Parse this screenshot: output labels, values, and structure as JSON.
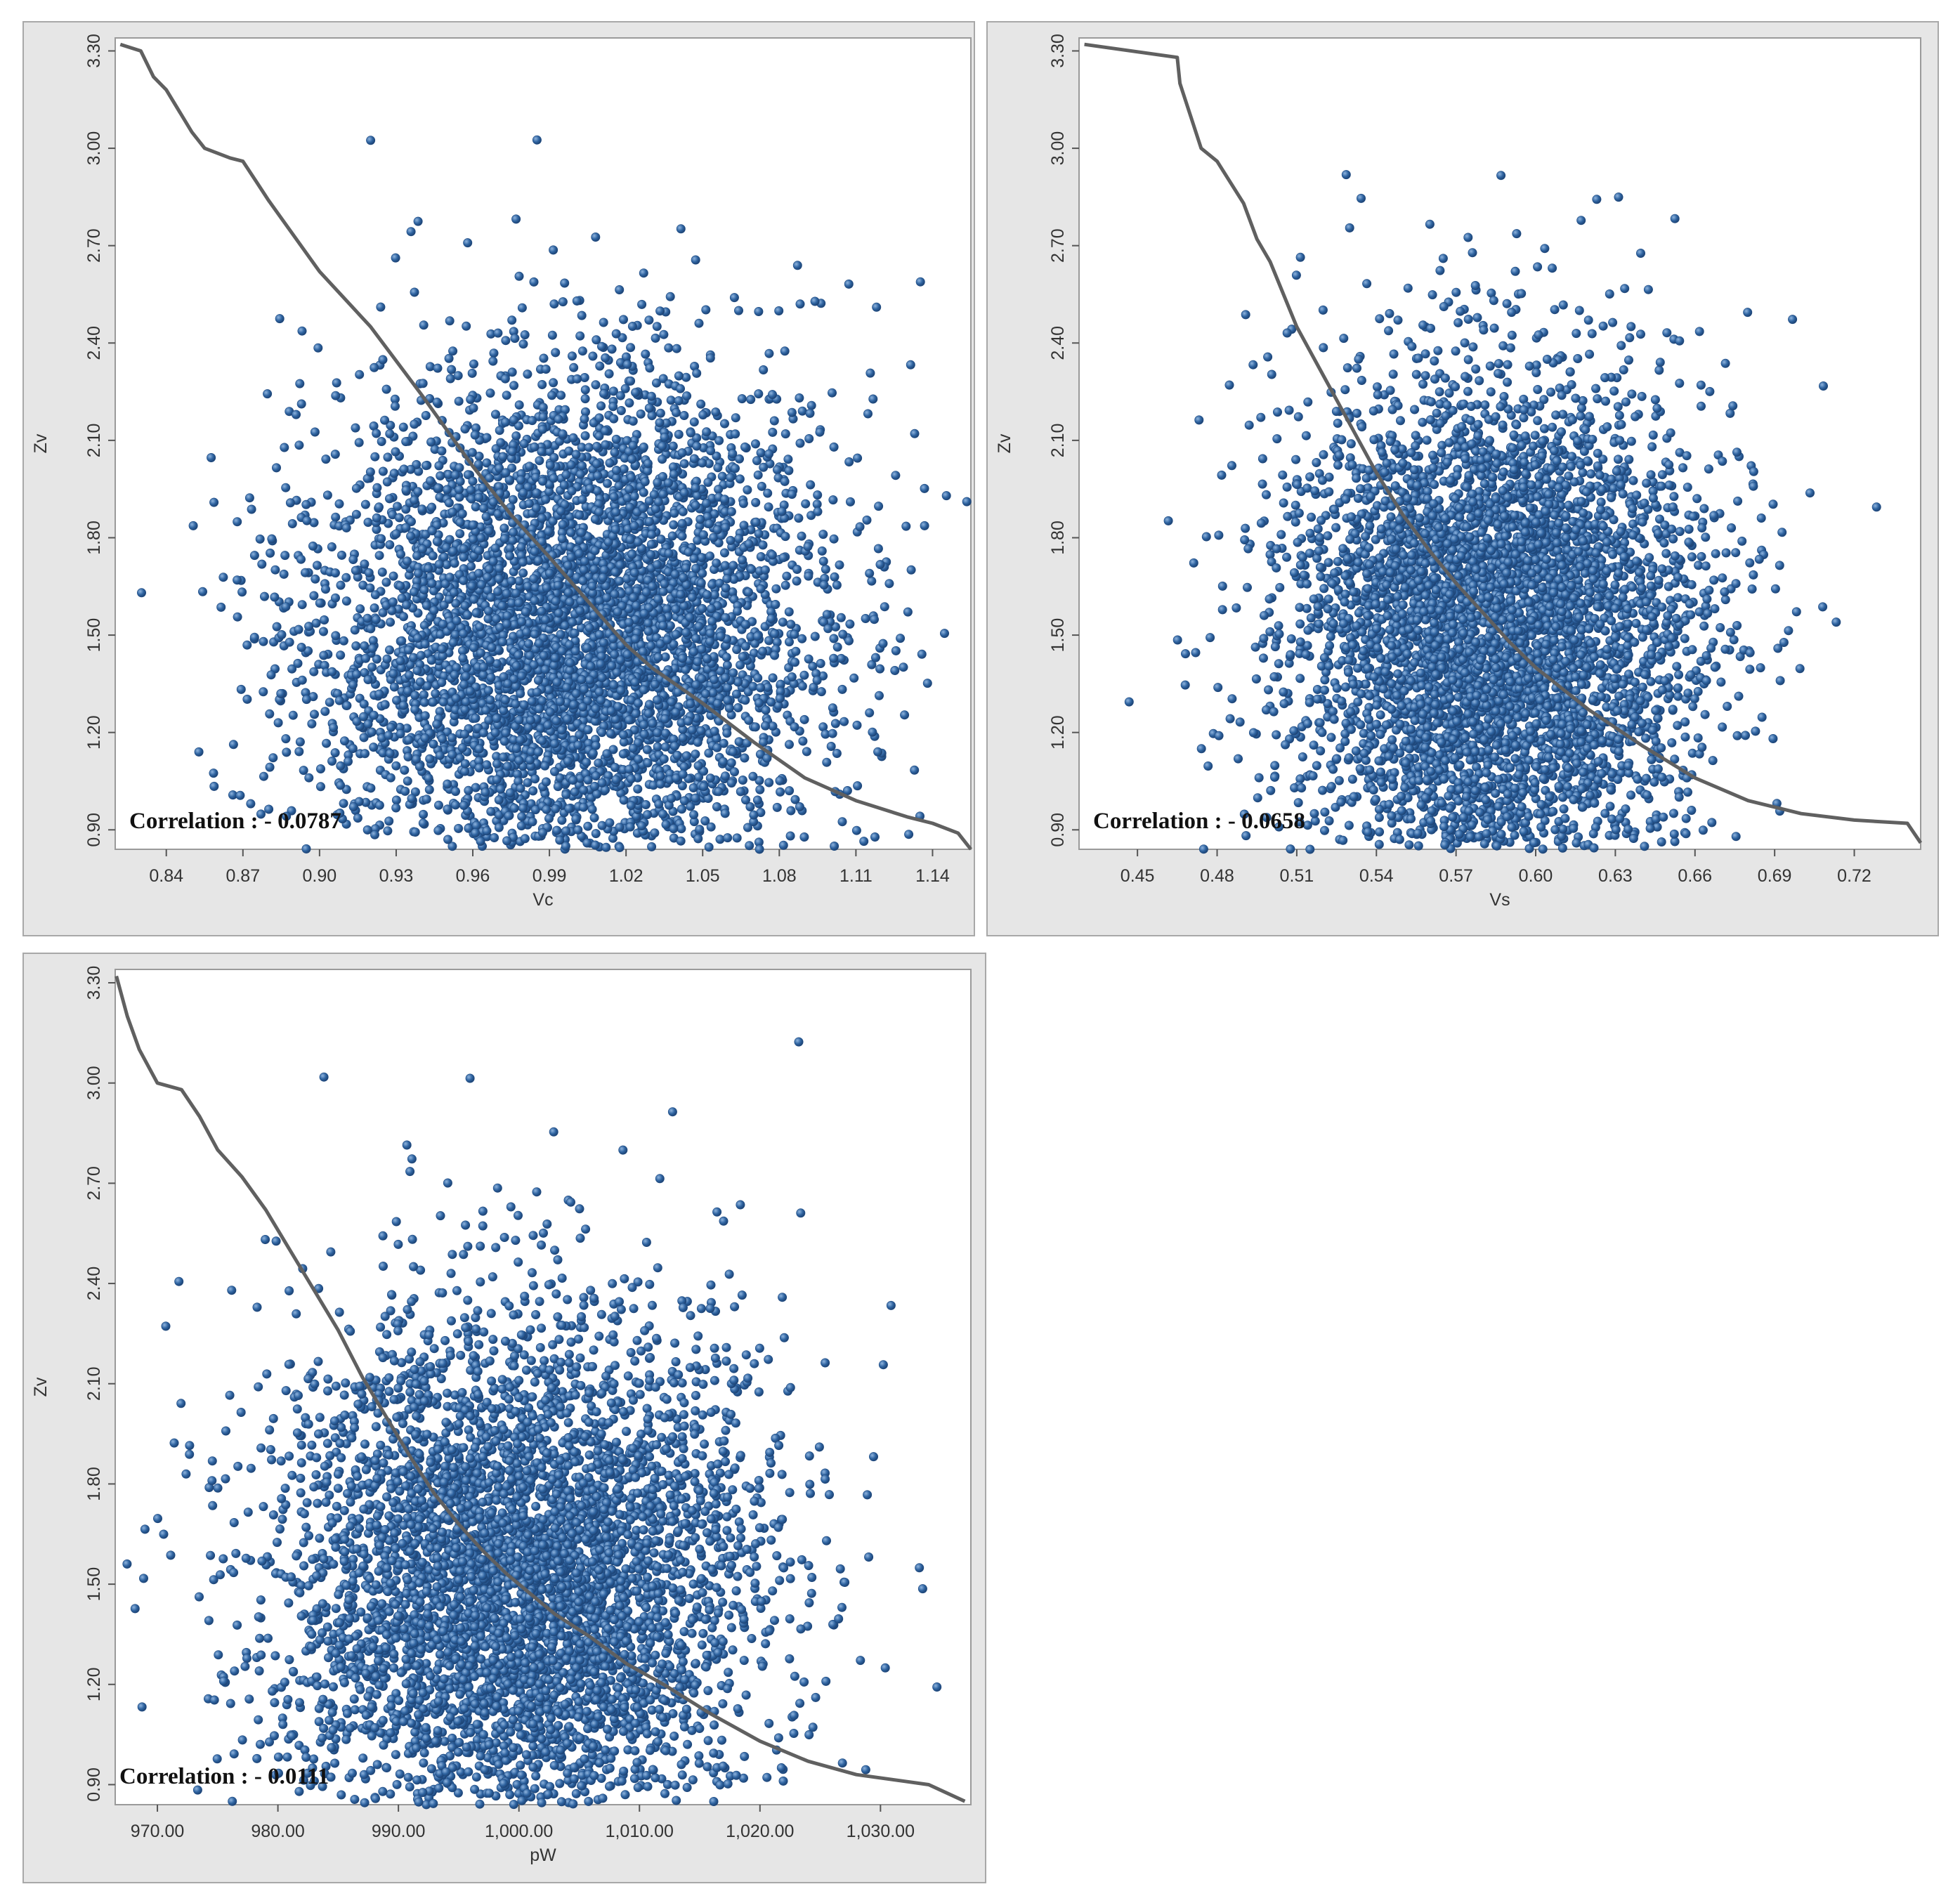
{
  "chart_data": [
    {
      "type": "scatter",
      "xlabel": "Vc",
      "ylabel": "Zv",
      "xlim": [
        0.82,
        1.155
      ],
      "ylim": [
        0.84,
        3.34
      ],
      "xticks": [
        "0.84",
        "0.87",
        "0.90",
        "0.93",
        "0.96",
        "0.99",
        "1.02",
        "1.05",
        "1.08",
        "1.11",
        "1.14"
      ],
      "yticks": [
        "0.90",
        "1.20",
        "1.50",
        "1.80",
        "2.10",
        "2.40",
        "2.70",
        "3.00",
        "3.30"
      ],
      "annotation": "Correlation : - 0.0787",
      "point_color": "#2e63a0",
      "line_color": "#606060",
      "grid": false,
      "points_summary": {
        "n": 5000,
        "x_mean": 1.0,
        "x_sd": 0.05,
        "y_mean": 1.5,
        "y_sd": 0.4
      },
      "curve": [
        [
          0.822,
          3.32
        ],
        [
          0.83,
          3.3
        ],
        [
          0.835,
          3.22
        ],
        [
          0.84,
          3.18
        ],
        [
          0.85,
          3.05
        ],
        [
          0.855,
          3.0
        ],
        [
          0.865,
          2.97
        ],
        [
          0.87,
          2.96
        ],
        [
          0.875,
          2.9
        ],
        [
          0.88,
          2.84
        ],
        [
          0.89,
          2.73
        ],
        [
          0.9,
          2.62
        ],
        [
          0.92,
          2.45
        ],
        [
          0.94,
          2.24
        ],
        [
          0.96,
          2.02
        ],
        [
          0.975,
          1.87
        ],
        [
          0.99,
          1.74
        ],
        [
          1.0,
          1.65
        ],
        [
          1.01,
          1.56
        ],
        [
          1.02,
          1.47
        ],
        [
          1.03,
          1.4
        ],
        [
          1.05,
          1.29
        ],
        [
          1.07,
          1.17
        ],
        [
          1.09,
          1.06
        ],
        [
          1.11,
          0.99
        ],
        [
          1.13,
          0.94
        ],
        [
          1.14,
          0.92
        ],
        [
          1.15,
          0.89
        ],
        [
          1.155,
          0.84
        ]
      ]
    },
    {
      "type": "scatter",
      "xlabel": "Vs",
      "ylabel": "Zv",
      "xlim": [
        0.428,
        0.745
      ],
      "ylim": [
        0.84,
        3.34
      ],
      "xticks": [
        "0.45",
        "0.48",
        "0.51",
        "0.54",
        "0.57",
        "0.60",
        "0.63",
        "0.66",
        "0.69",
        "0.72"
      ],
      "yticks": [
        "0.90",
        "1.20",
        "1.50",
        "1.80",
        "2.10",
        "2.40",
        "2.70",
        "3.00",
        "3.30"
      ],
      "annotation": "Correlation : - 0.0658",
      "point_color": "#2e63a0",
      "line_color": "#606060",
      "grid": false,
      "points_summary": {
        "n": 5000,
        "x_mean": 0.585,
        "x_sd": 0.038,
        "y_mean": 1.5,
        "y_sd": 0.4
      },
      "curve": [
        [
          0.43,
          3.32
        ],
        [
          0.465,
          3.28
        ],
        [
          0.466,
          3.2
        ],
        [
          0.47,
          3.1
        ],
        [
          0.474,
          3.0
        ],
        [
          0.48,
          2.96
        ],
        [
          0.49,
          2.83
        ],
        [
          0.495,
          2.72
        ],
        [
          0.5,
          2.65
        ],
        [
          0.505,
          2.55
        ],
        [
          0.51,
          2.45
        ],
        [
          0.52,
          2.3
        ],
        [
          0.53,
          2.15
        ],
        [
          0.54,
          2.0
        ],
        [
          0.55,
          1.87
        ],
        [
          0.56,
          1.76
        ],
        [
          0.57,
          1.66
        ],
        [
          0.58,
          1.57
        ],
        [
          0.59,
          1.48
        ],
        [
          0.6,
          1.4
        ],
        [
          0.62,
          1.27
        ],
        [
          0.64,
          1.16
        ],
        [
          0.66,
          1.06
        ],
        [
          0.68,
          0.99
        ],
        [
          0.7,
          0.95
        ],
        [
          0.72,
          0.93
        ],
        [
          0.74,
          0.92
        ],
        [
          0.745,
          0.86
        ]
      ]
    },
    {
      "type": "scatter",
      "xlabel": "pW",
      "ylabel": "Zv",
      "xlim": [
        966.5,
        1037.5
      ],
      "ylim": [
        0.84,
        3.34
      ],
      "xticks": [
        "970.00",
        "980.00",
        "990.00",
        "1,000.00",
        "1,010.00",
        "1,020.00",
        "1,030.00"
      ],
      "yticks": [
        "0.90",
        "1.20",
        "1.50",
        "1.80",
        "2.10",
        "2.40",
        "2.70",
        "3.00",
        "3.30"
      ],
      "annotation": "Correlation : - 0.0111",
      "point_color": "#2e63a0",
      "line_color": "#606060",
      "grid": false,
      "points_summary": {
        "n": 5000,
        "x_mean": 1000.0,
        "x_sd": 10.0,
        "y_mean": 1.5,
        "y_sd": 0.4
      },
      "curve": [
        [
          966.6,
          3.32
        ],
        [
          967.5,
          3.2
        ],
        [
          968.5,
          3.1
        ],
        [
          970,
          3.0
        ],
        [
          972,
          2.98
        ],
        [
          973.5,
          2.9
        ],
        [
          975,
          2.8
        ],
        [
          977,
          2.72
        ],
        [
          979,
          2.62
        ],
        [
          981,
          2.5
        ],
        [
          983,
          2.38
        ],
        [
          985,
          2.26
        ],
        [
          987,
          2.12
        ],
        [
          989,
          2.0
        ],
        [
          991,
          1.88
        ],
        [
          993,
          1.77
        ],
        [
          995,
          1.68
        ],
        [
          997,
          1.6
        ],
        [
          999,
          1.53
        ],
        [
          1001,
          1.47
        ],
        [
          1003,
          1.41
        ],
        [
          1006,
          1.34
        ],
        [
          1009,
          1.26
        ],
        [
          1012,
          1.2
        ],
        [
          1016,
          1.11
        ],
        [
          1020,
          1.03
        ],
        [
          1024,
          0.97
        ],
        [
          1028,
          0.93
        ],
        [
          1032,
          0.91
        ],
        [
          1034,
          0.9
        ],
        [
          1037,
          0.85
        ]
      ]
    }
  ]
}
